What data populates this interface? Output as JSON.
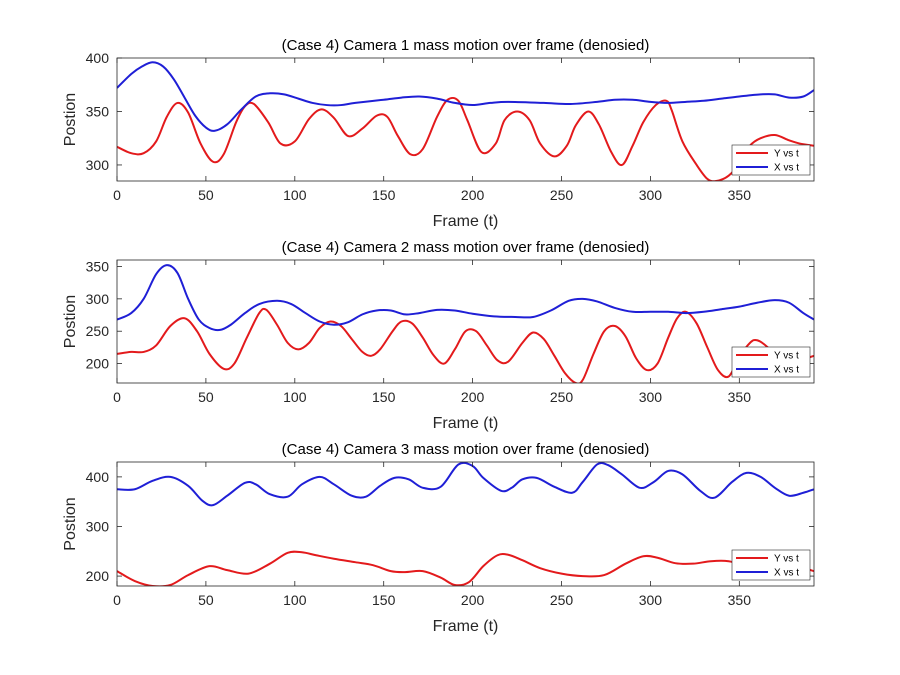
{
  "chart_data": [
    {
      "type": "line",
      "title": "(Case 4) Camera 1 mass motion over frame (denosied)",
      "xlabel": "Frame (t)",
      "ylabel": "Postion",
      "xlim": [
        0,
        392
      ],
      "ylim": [
        285,
        400
      ],
      "xticks": [
        0,
        50,
        100,
        150,
        200,
        250,
        300,
        350
      ],
      "yticks": [
        300,
        350,
        400
      ],
      "grid": false,
      "legend_position": "bottom-right",
      "series": [
        {
          "name": "Y vs t",
          "color": "#e31a1c",
          "x": [
            0,
            8,
            15,
            22,
            28,
            34,
            40,
            47,
            54,
            60,
            67,
            72,
            77,
            85,
            92,
            100,
            108,
            115,
            122,
            130,
            138,
            146,
            152,
            158,
            165,
            172,
            180,
            186,
            192,
            197,
            205,
            213,
            218,
            225,
            232,
            238,
            246,
            253,
            258,
            265,
            271,
            278,
            284,
            290,
            296,
            303,
            309,
            312,
            318,
            326,
            332,
            337,
            344,
            351,
            356,
            362,
            370,
            378,
            384,
            392
          ],
          "y": [
            317,
            311,
            311,
            322,
            345,
            358,
            349,
            320,
            303,
            310,
            340,
            355,
            357,
            340,
            320,
            322,
            343,
            352,
            344,
            327,
            334,
            346,
            345,
            327,
            310,
            315,
            345,
            361,
            360,
            342,
            312,
            320,
            342,
            350,
            342,
            320,
            308,
            318,
            337,
            350,
            338,
            312,
            300,
            318,
            340,
            356,
            360,
            351,
            322,
            300,
            287,
            285,
            290,
            303,
            318,
            325,
            328,
            323,
            320,
            318
          ]
        },
        {
          "name": "X vs t",
          "color": "#1f1fd6",
          "x": [
            0,
            8,
            14,
            20,
            26,
            32,
            38,
            44,
            50,
            55,
            62,
            70,
            78,
            86,
            94,
            102,
            110,
            118,
            126,
            134,
            150,
            160,
            170,
            180,
            190,
            200,
            210,
            220,
            240,
            255,
            270,
            280,
            290,
            300,
            310,
            320,
            330,
            340,
            350,
            362,
            370,
            378,
            386,
            392
          ],
          "y": [
            372,
            385,
            392,
            396,
            392,
            380,
            363,
            346,
            335,
            332,
            338,
            352,
            364,
            367,
            366,
            362,
            358,
            356,
            356,
            358,
            361,
            363,
            364,
            362,
            358,
            356,
            358,
            359,
            358,
            357,
            359,
            361,
            361,
            359,
            358,
            359,
            360,
            362,
            364,
            366,
            366,
            363,
            364,
            370
          ]
        }
      ]
    },
    {
      "type": "line",
      "title": "(Case 4) Camera 2 mass motion over frame (denosied)",
      "xlabel": "Frame (t)",
      "ylabel": "Postion",
      "xlim": [
        0,
        392
      ],
      "ylim": [
        170,
        360
      ],
      "xticks": [
        0,
        50,
        100,
        150,
        200,
        250,
        300,
        350
      ],
      "yticks": [
        200,
        250,
        300,
        350
      ],
      "grid": false,
      "legend_position": "bottom-right",
      "series": [
        {
          "name": "Y vs t",
          "color": "#e31a1c",
          "x": [
            0,
            8,
            15,
            22,
            30,
            38,
            45,
            52,
            60,
            66,
            73,
            80,
            84,
            90,
            96,
            102,
            108,
            114,
            120,
            126,
            132,
            138,
            143,
            148,
            155,
            160,
            166,
            172,
            178,
            184,
            190,
            196,
            202,
            208,
            214,
            220,
            228,
            234,
            240,
            246,
            252,
            258,
            262,
            268,
            274,
            280,
            286,
            292,
            298,
            304,
            310,
            315,
            320,
            326,
            332,
            338,
            344,
            350,
            356,
            360,
            366,
            372,
            378,
            384,
            392
          ],
          "y": [
            215,
            218,
            218,
            228,
            258,
            270,
            250,
            215,
            192,
            200,
            240,
            278,
            283,
            260,
            232,
            222,
            232,
            255,
            265,
            258,
            238,
            218,
            212,
            222,
            250,
            265,
            262,
            240,
            213,
            200,
            222,
            250,
            250,
            228,
            205,
            203,
            232,
            248,
            238,
            212,
            185,
            170,
            175,
            215,
            250,
            258,
            242,
            208,
            190,
            200,
            240,
            270,
            280,
            262,
            225,
            190,
            180,
            210,
            232,
            236,
            225,
            205,
            200,
            205,
            212
          ]
        },
        {
          "name": "X vs t",
          "color": "#1f1fd6",
          "x": [
            0,
            8,
            15,
            22,
            28,
            34,
            40,
            46,
            52,
            58,
            64,
            72,
            80,
            90,
            98,
            106,
            114,
            122,
            130,
            138,
            146,
            154,
            162,
            170,
            180,
            190,
            200,
            212,
            224,
            234,
            244,
            254,
            262,
            270,
            280,
            290,
            300,
            310,
            320,
            330,
            340,
            350,
            360,
            370,
            378,
            386,
            392
          ],
          "y": [
            268,
            278,
            300,
            338,
            352,
            340,
            300,
            268,
            255,
            252,
            260,
            278,
            292,
            297,
            292,
            278,
            265,
            260,
            264,
            276,
            282,
            282,
            276,
            278,
            283,
            282,
            277,
            273,
            272,
            272,
            282,
            297,
            300,
            296,
            286,
            280,
            280,
            280,
            278,
            280,
            284,
            288,
            294,
            298,
            294,
            278,
            268
          ]
        }
      ]
    },
    {
      "type": "line",
      "title": "(Case 4) Camera 3 mass motion over frame (denosied)",
      "xlabel": "Frame (t)",
      "ylabel": "Postion",
      "xlim": [
        0,
        392
      ],
      "ylim": [
        180,
        430
      ],
      "xticks": [
        0,
        50,
        100,
        150,
        200,
        250,
        300,
        350
      ],
      "yticks": [
        200,
        300,
        400
      ],
      "grid": false,
      "legend_position": "bottom-right",
      "series": [
        {
          "name": "Y vs t",
          "color": "#e31a1c",
          "x": [
            0,
            10,
            20,
            30,
            40,
            52,
            62,
            74,
            86,
            96,
            104,
            112,
            122,
            134,
            144,
            154,
            162,
            172,
            182,
            190,
            198,
            206,
            214,
            220,
            228,
            238,
            250,
            262,
            274,
            286,
            296,
            304,
            314,
            324,
            334,
            344,
            352,
            360,
            368,
            376,
            384,
            392
          ],
          "y": [
            210,
            190,
            180,
            182,
            202,
            220,
            212,
            205,
            225,
            247,
            248,
            242,
            235,
            228,
            222,
            210,
            208,
            210,
            197,
            182,
            188,
            220,
            242,
            243,
            232,
            216,
            205,
            200,
            202,
            225,
            240,
            237,
            226,
            225,
            230,
            230,
            222,
            215,
            218,
            222,
            218,
            210
          ]
        },
        {
          "name": "X vs t",
          "color": "#1f1fd6",
          "x": [
            0,
            10,
            20,
            30,
            40,
            48,
            54,
            62,
            72,
            78,
            86,
            96,
            104,
            114,
            122,
            132,
            140,
            148,
            156,
            164,
            172,
            182,
            192,
            200,
            206,
            216,
            222,
            228,
            236,
            246,
            256,
            262,
            270,
            276,
            284,
            294,
            302,
            310,
            318,
            328,
            336,
            346,
            354,
            362,
            370,
            378,
            386,
            392
          ],
          "y": [
            375,
            375,
            392,
            400,
            382,
            352,
            343,
            362,
            388,
            385,
            365,
            360,
            385,
            400,
            385,
            362,
            360,
            382,
            398,
            395,
            378,
            380,
            425,
            422,
            398,
            372,
            378,
            395,
            398,
            380,
            368,
            390,
            425,
            424,
            405,
            378,
            390,
            412,
            405,
            372,
            358,
            390,
            408,
            400,
            378,
            362,
            368,
            375
          ]
        }
      ]
    }
  ]
}
